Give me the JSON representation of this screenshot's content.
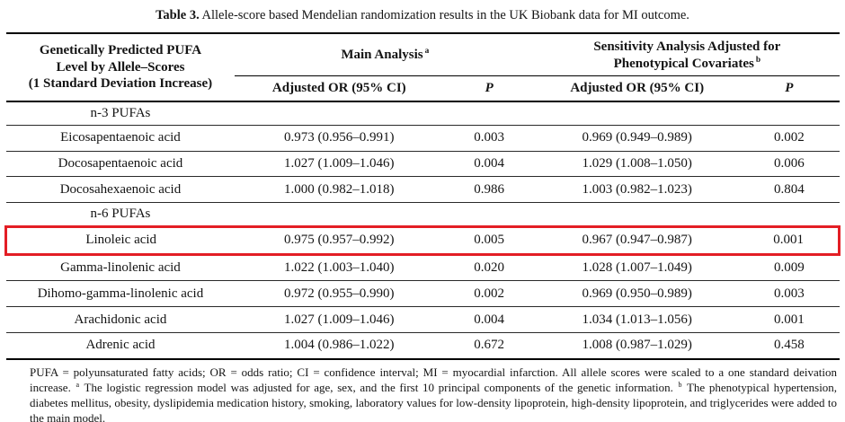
{
  "colors": {
    "highlight_red": "#e31e25",
    "text": "#141414",
    "rule": "#000000",
    "background": "#ffffff"
  },
  "caption": {
    "label": "Table 3.",
    "text": "Allele-score based Mendelian randomization results in the UK Biobank data for MI outcome."
  },
  "table": {
    "col1_header": [
      "Genetically Predicted PUFA",
      "Level by Allele–Scores",
      "(1 Standard Deviation Increase)"
    ],
    "groups": [
      {
        "label": "Main Analysis",
        "sup": "a"
      },
      {
        "label_line1": "Sensitivity Analysis Adjusted for",
        "label_line2": "Phenotypical Covariates",
        "sup": "b"
      }
    ],
    "subheaders": [
      "Adjusted OR (95% CI)",
      "P",
      "Adjusted OR (95% CI)",
      "P"
    ],
    "rows": [
      {
        "type": "section",
        "label": "n-3 PUFAs"
      },
      {
        "type": "data",
        "name": "Eicosapentaenoic acid",
        "main_or": "0.973 (0.956–0.991)",
        "main_p": "0.003",
        "sens_or": "0.969 (0.949–0.989)",
        "sens_p": "0.002"
      },
      {
        "type": "data",
        "name": "Docosapentaenoic acid",
        "main_or": "1.027 (1.009–1.046)",
        "main_p": "0.004",
        "sens_or": "1.029 (1.008–1.050)",
        "sens_p": "0.006"
      },
      {
        "type": "data",
        "name": "Docosahexaenoic acid",
        "main_or": "1.000 (0.982–1.018)",
        "main_p": "0.986",
        "sens_or": "1.003 (0.982–1.023)",
        "sens_p": "0.804"
      },
      {
        "type": "section",
        "label": "n-6 PUFAs"
      },
      {
        "type": "data",
        "highlight": true,
        "name": "Linoleic acid",
        "main_or": "0.975 (0.957–0.992)",
        "main_p": "0.005",
        "sens_or": "0.967 (0.947–0.987)",
        "sens_p": "0.001"
      },
      {
        "type": "data",
        "name": "Gamma-linolenic acid",
        "main_or": "1.022 (1.003–1.040)",
        "main_p": "0.020",
        "sens_or": "1.028 (1.007–1.049)",
        "sens_p": "0.009"
      },
      {
        "type": "data",
        "name": "Dihomo-gamma-linolenic acid",
        "main_or": "0.972 (0.955–0.990)",
        "main_p": "0.002",
        "sens_or": "0.969 (0.950–0.989)",
        "sens_p": "0.003"
      },
      {
        "type": "data",
        "name": "Arachidonic acid",
        "main_or": "1.027 (1.009–1.046)",
        "main_p": "0.004",
        "sens_or": "1.034 (1.013–1.056)",
        "sens_p": "0.001"
      },
      {
        "type": "data",
        "name": "Adrenic acid",
        "main_or": "1.004 (0.986–1.022)",
        "main_p": "0.672",
        "sens_or": "1.008 (0.987–1.029)",
        "sens_p": "0.458"
      }
    ]
  },
  "footnote": {
    "part1": "PUFA = polyunsaturated fatty acids; OR = odds ratio; CI = confidence interval; MI = myocardial infarction. All allele scores were scaled to a one standard deivation increase.",
    "sup_a": "a",
    "part2": "The logistic regression model was adjusted for age, sex, and the first 10 principal components of the genetic information.",
    "sup_b": "b",
    "part3": "The phenotypical hypertension, diabetes mellitus, obesity, dyslipidemia medication history, smoking, laboratory values for low-density lipoprotein, high-density lipoprotein, and triglycerides were added to the main model."
  }
}
